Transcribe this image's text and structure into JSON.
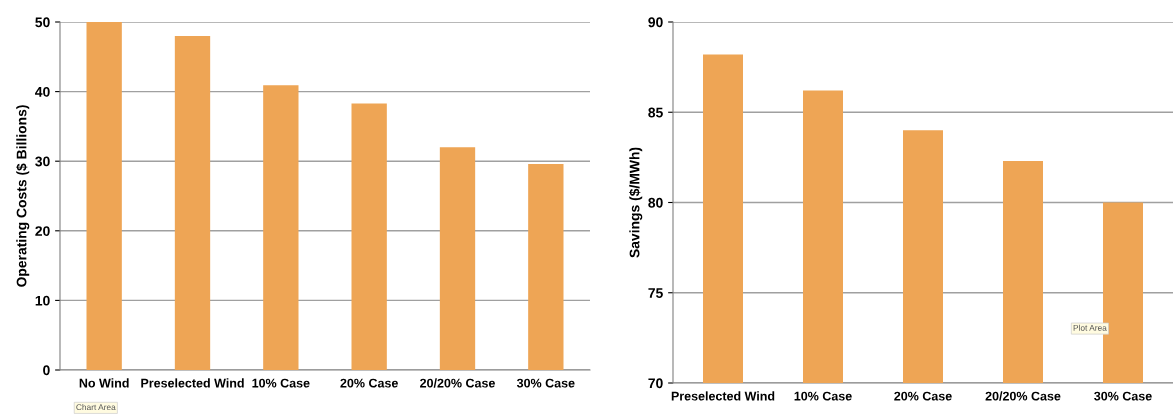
{
  "chart_data": [
    {
      "type": "bar",
      "ylabel": "Operating Costs ($ Billions)",
      "categories": [
        "No Wind",
        "Preselected Wind",
        "10% Case",
        "20% Case",
        "20/20% Case",
        "30% Case"
      ],
      "values": [
        50,
        48,
        40.9,
        38.3,
        32.0,
        29.6
      ],
      "color": "#eea555",
      "ylim": [
        0,
        50
      ],
      "yticks": [
        0,
        10,
        20,
        30,
        40,
        50
      ],
      "grid": "y",
      "annotations": [
        "Chart Area"
      ]
    },
    {
      "type": "bar",
      "ylabel": "Savings ($/MWh)",
      "categories": [
        "Preselected Wind",
        "10% Case",
        "20% Case",
        "20/20% Case",
        "30% Case"
      ],
      "values": [
        88.2,
        86.2,
        84.0,
        82.3,
        80.0
      ],
      "color": "#eea555",
      "ylim": [
        70,
        90
      ],
      "yticks": [
        70,
        75,
        80,
        85,
        90
      ],
      "grid": "y",
      "annotations": [
        "Plot Area"
      ]
    }
  ]
}
